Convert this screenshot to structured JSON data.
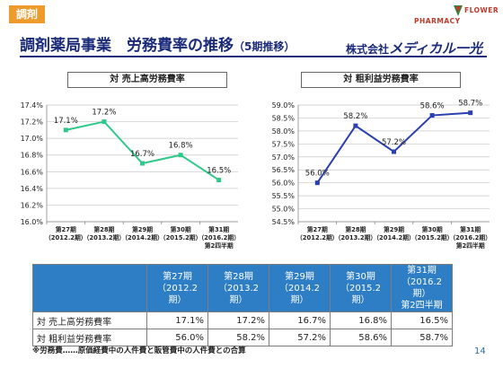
{
  "header": {
    "category_tag": "調剤",
    "title": "調剤薬局事業　労務費率の推移",
    "title_sub": "（5期推移）",
    "company_prefix": "株式会社",
    "company_brand": "メディカル一光",
    "logo_text": "PHARMACY FLOWER"
  },
  "chart_data": [
    {
      "type": "line",
      "title": "対 売上高労務費率",
      "categories": [
        "第27期\n（2012.2期）",
        "第28期\n（2013.2期）",
        "第29期\n（2014.2期）",
        "第30期\n（2015.2期）",
        "第31期\n（2016.2期）\n第2四半期"
      ],
      "values": [
        17.1,
        17.2,
        16.7,
        16.8,
        16.5
      ],
      "data_labels": [
        "17.1%",
        "17.2%",
        "16.7%",
        "16.8%",
        "16.5%"
      ],
      "ylim": [
        16.0,
        17.4
      ],
      "yticks": [
        "16.0%",
        "16.2%",
        "16.4%",
        "16.6%",
        "16.8%",
        "17.0%",
        "17.2%",
        "17.4%"
      ],
      "color": "#2ec88a",
      "grid": true
    },
    {
      "type": "line",
      "title": "対 粗利益労務費率",
      "categories": [
        "第27期\n（2012.2期）",
        "第28期\n（2013.2期）",
        "第29期\n（2014.2期）",
        "第30期\n（2015.2期）",
        "第31期\n（2016.2期）\n第2四半期"
      ],
      "values": [
        56.0,
        58.2,
        57.2,
        58.6,
        58.7
      ],
      "data_labels": [
        "56.0%",
        "58.2%",
        "57.2%",
        "58.6%",
        "58.7%"
      ],
      "ylim": [
        54.5,
        59.0
      ],
      "yticks": [
        "54.5%",
        "55.0%",
        "55.5%",
        "56.0%",
        "56.5%",
        "57.0%",
        "57.5%",
        "58.0%",
        "58.5%",
        "59.0%"
      ],
      "color": "#2a3fb0",
      "grid": true
    }
  ],
  "table": {
    "headers": [
      "第27期\n（2012.2期）",
      "第28期\n（2013.2期）",
      "第29期\n（2014.2期）",
      "第30期\n（2015.2期）",
      "第31期\n（2016.2期）\n第2四半期"
    ],
    "rows": [
      {
        "label": "対 売上高労務費率",
        "values": [
          "17.1%",
          "17.2%",
          "16.7%",
          "16.8%",
          "16.5%"
        ]
      },
      {
        "label": "対 粗利益労務費率",
        "values": [
          "56.0%",
          "58.2%",
          "57.2%",
          "58.6%",
          "58.7%"
        ]
      }
    ]
  },
  "footnote": "※労務費……原価経費中の人件費と販管費中の人件費との合算",
  "page_number": "14"
}
